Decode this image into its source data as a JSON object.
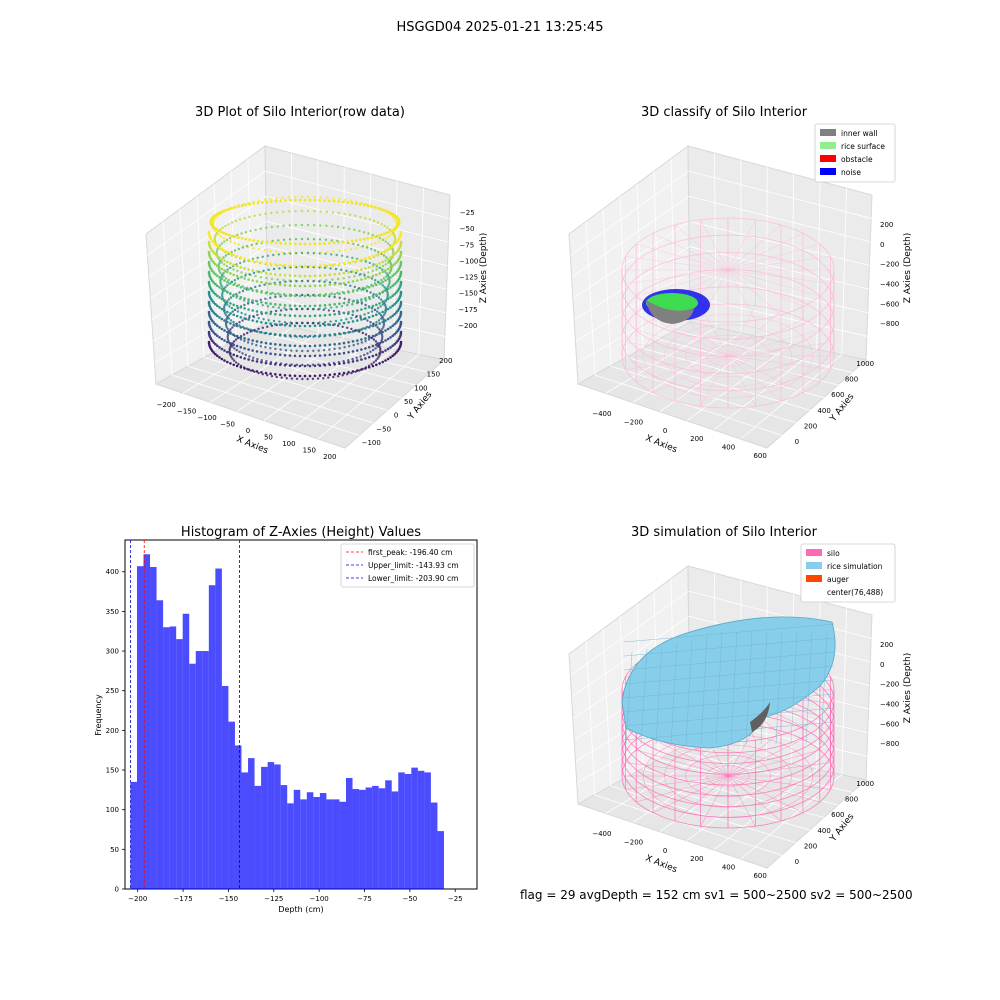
{
  "suptitle": "HSGGD04 2025-01-21 13:25:45",
  "footer": "flag = 29  avgDepth = 152 cm  sv1 = 500~2500  sv2 = 500~2500",
  "chart_data": [
    {
      "type": "scatter",
      "subtype": "3d",
      "title": "3D Plot of Silo Interior(row data)",
      "xlabel": "X Axies",
      "ylabel": "Y Axies",
      "zlabel": "Z Axies (Depth)",
      "x_ticks": [
        "−200",
        "−150",
        "−100",
        "−50",
        "0",
        "50",
        "100",
        "150",
        "200"
      ],
      "y_ticks": [
        "−100",
        "−50",
        "0",
        "50",
        "100",
        "150",
        "200"
      ],
      "z_ticks": [
        "−25",
        "−50",
        "−75",
        "−100",
        "−125",
        "−150",
        "−175",
        "−200"
      ],
      "xlim": [
        -200,
        200
      ],
      "ylim": [
        -100,
        200
      ],
      "zlim": [
        -210,
        -15
      ],
      "colormap": "viridis"
    },
    {
      "type": "scatter",
      "subtype": "3d",
      "title": "3D classify of Silo Interior",
      "xlabel": "X Axies",
      "ylabel": "Y Axies",
      "zlabel": "Z Axies (Depth)",
      "x_ticks": [
        "−400",
        "−200",
        "0",
        "200",
        "400",
        "600"
      ],
      "y_ticks": [
        "0",
        "200",
        "400",
        "600",
        "800",
        "1000"
      ],
      "z_ticks": [
        "200",
        "0",
        "−200",
        "−400",
        "−600",
        "−800"
      ],
      "legend": [
        {
          "label": "inner wall",
          "color": "#808080"
        },
        {
          "label": "rice surface",
          "color": "#90ee90"
        },
        {
          "label": "obstacle",
          "color": "#ff0000"
        },
        {
          "label": "noise",
          "color": "#0000ff"
        }
      ],
      "legend_position": "top-right"
    },
    {
      "type": "bar",
      "subtype": "histogram",
      "title": "Histogram of Z-Axies (Height) Values",
      "xlabel": "Depth (cm)",
      "ylabel": "Frequency",
      "x_ticks": [
        -200,
        -175,
        -150,
        -125,
        -100,
        -75,
        -50,
        -25
      ],
      "y_ticks": [
        0,
        50,
        100,
        150,
        200,
        250,
        300,
        350,
        400
      ],
      "xlim": [
        -207,
        -13
      ],
      "ylim": [
        0,
        440
      ],
      "bin_start": -204,
      "bin_width": 3.6,
      "values": [
        135,
        407,
        422,
        406,
        364,
        330,
        331,
        315,
        347,
        284,
        300,
        300,
        383,
        404,
        256,
        211,
        181,
        147,
        165,
        130,
        154,
        160,
        157,
        131,
        108,
        125,
        113,
        122,
        116,
        121,
        113,
        113,
        110,
        140,
        126,
        125,
        128,
        130,
        127,
        137,
        123,
        147,
        145,
        153,
        149,
        147,
        109,
        73
      ],
      "bar_color": "#0000ff",
      "vlines": [
        {
          "label": "first_peak: -196.40 cm",
          "x": -196.4,
          "color": "#ff0000"
        },
        {
          "label": "Upper_limit: -143.93 cm",
          "x": -143.93,
          "color": "#0000cc"
        },
        {
          "label": "Lower_limit: -203.90 cm",
          "x": -203.9,
          "color": "#0000cc"
        }
      ],
      "legend_position": "top-right"
    },
    {
      "type": "scatter",
      "subtype": "3d-surface",
      "title": "3D simulation of Silo Interior",
      "xlabel": "X Axies",
      "ylabel": "Y Axies",
      "zlabel": "Z Axies (Depth)",
      "x_ticks": [
        "−400",
        "−200",
        "0",
        "200",
        "400",
        "600"
      ],
      "y_ticks": [
        "0",
        "200",
        "400",
        "600",
        "800",
        "1000"
      ],
      "z_ticks": [
        "200",
        "0",
        "−200",
        "−400",
        "−600",
        "−800"
      ],
      "legend": [
        {
          "label": "silo",
          "color": "#ff69b4"
        },
        {
          "label": "rice simulation",
          "color": "#87ceeb"
        },
        {
          "label": "auger",
          "color": "#ff4500"
        },
        {
          "label": "center(76,488)",
          "color": ""
        }
      ],
      "legend_position": "top-right"
    }
  ]
}
